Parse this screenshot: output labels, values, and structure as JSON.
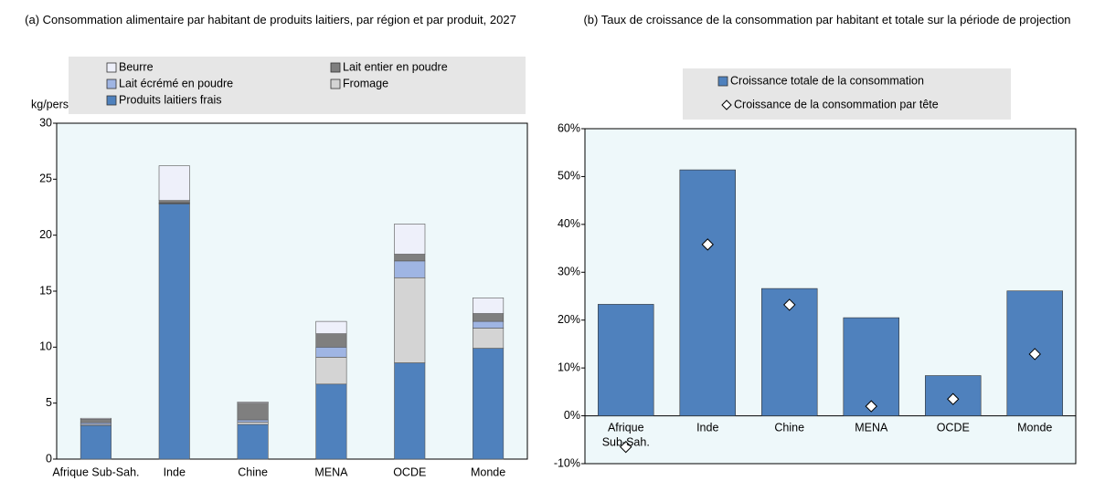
{
  "chart_data": [
    {
      "type": "bar",
      "stacked": true,
      "title": "(a) Consommation alimentaire par habitant de produits laitiers, par région et par produit, 2027",
      "y_label": "kg/pers",
      "categories": [
        "Afrique Sub-Sah.",
        "Inde",
        "Chine",
        "MENA",
        "OCDE",
        "Monde"
      ],
      "series": [
        {
          "name": "Produits laitiers frais",
          "color": "#4f81bd",
          "values": [
            3.0,
            22.8,
            3.1,
            6.7,
            8.6,
            9.9
          ]
        },
        {
          "name": "Fromage",
          "color": "#d4d4d4",
          "values": [
            0.1,
            0.05,
            0.2,
            2.4,
            7.6,
            1.8
          ]
        },
        {
          "name": "Lait écrémé en poudre",
          "color": "#9fb5e3",
          "values": [
            0.15,
            0.05,
            0.2,
            0.9,
            1.5,
            0.6
          ]
        },
        {
          "name": "Lait entier en poudre",
          "color": "#7f7f7f",
          "values": [
            0.3,
            0.2,
            1.5,
            1.2,
            0.6,
            0.7
          ]
        },
        {
          "name": "Beurre",
          "color": "#eef0fa",
          "values": [
            0.1,
            3.1,
            0.1,
            1.1,
            2.7,
            1.4
          ]
        }
      ],
      "ylim": [
        0,
        30
      ],
      "yticks": [
        0,
        5,
        10,
        15,
        20,
        25,
        30
      ]
    },
    {
      "type": "bar",
      "stacked": false,
      "title": "(b) Taux de croissance de la consommation par habitant et totale sur la période de projection",
      "categories": [
        "Afrique Sub-Sah.",
        "Inde",
        "Chine",
        "MENA",
        "OCDE",
        "Monde"
      ],
      "series": [
        {
          "name": "Croissance totale de la consommation",
          "type": "bar",
          "color": "#4f81bd",
          "values": [
            23.3,
            51.4,
            26.6,
            20.5,
            8.4,
            26.1
          ]
        },
        {
          "name": "Croissance de la consommation par tête",
          "type": "scatter",
          "color": "#ffffff",
          "values": [
            -6.5,
            35.8,
            23.2,
            2.0,
            3.5,
            12.9
          ]
        }
      ],
      "ylim": [
        -10,
        60
      ],
      "yticks": [
        {
          "value": -10,
          "label": "-10%"
        },
        {
          "value": 0,
          "label": "0%"
        },
        {
          "value": 10,
          "label": "10%"
        },
        {
          "value": 20,
          "label": "20%"
        },
        {
          "value": 30,
          "label": "30%"
        },
        {
          "value": 40,
          "label": "40%"
        },
        {
          "value": 50,
          "label": "50%"
        },
        {
          "value": 60,
          "label": "60%"
        }
      ]
    }
  ]
}
